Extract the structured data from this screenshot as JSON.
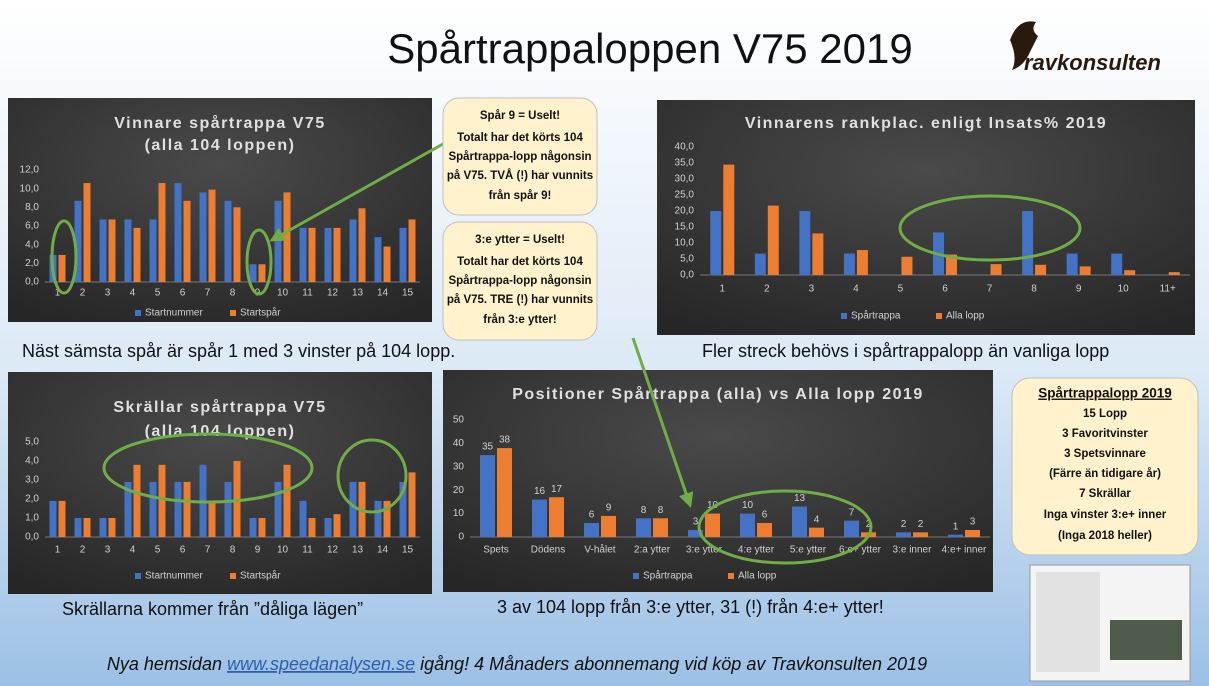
{
  "slide": {
    "title": "Spårtrappaloppen V75 2019",
    "logo": "ravkonsulten",
    "callouts": [
      {
        "lines": [
          "Spår 9 = Uselt!",
          "Totalt har det körts 104",
          "Spårtrappa-lopp någonsin",
          "på V75. TVÅ (!) har vunnits",
          "från spår 9!"
        ]
      },
      {
        "lines": [
          "3:e ytter = Uselt!",
          "Totalt har det körts 104",
          "Spårtrappa-lopp någonsin",
          "på V75. TRE (!) har vunnits",
          "från 3:e ytter!"
        ]
      }
    ],
    "info_box": {
      "heading": "Spårtrappalopp 2019",
      "lines": [
        "15 Lopp",
        "3 Favoritvinster",
        "3 Spetsvinnare",
        "(Färre än tidigare år)",
        "7 Skrällar",
        "Inga vinster 3:e+ inner",
        "(Inga 2018 heller)"
      ]
    },
    "captions": [
      "Näst sämsta spår är spår 1 med 3 vinster på 104 lopp.",
      "Fler streck behövs i spårtrappalopp än vanliga lopp",
      "Skrällarna kommer från ”dåliga lägen”",
      "3 av 104 lopp från 3:e ytter, 31 (!) från 4:e+ ytter!"
    ],
    "footer": [
      "Nya hemsidan",
      "www.speedanalysen.se",
      "igång! 4 Månaders abonnemang vid köp av Travkonsulten 2019"
    ]
  },
  "chart_data": [
    {
      "type": "bar",
      "title": [
        "Vinnare spårtrappa V75",
        "(alla 104 loppen)"
      ],
      "categories": [
        "1",
        "2",
        "3",
        "4",
        "5",
        "6",
        "7",
        "8",
        "9",
        "10",
        "11",
        "12",
        "13",
        "14",
        "15"
      ],
      "series": [
        {
          "name": "Startnummer",
          "color": "#4472c4",
          "values": [
            2.9,
            8.7,
            6.7,
            6.7,
            6.7,
            10.6,
            9.6,
            8.7,
            1.9,
            8.7,
            5.8,
            5.8,
            6.7,
            4.8,
            5.8
          ]
        },
        {
          "name": "Startspår",
          "color": "#ed7d31",
          "values": [
            2.9,
            10.6,
            6.7,
            5.8,
            10.6,
            8.7,
            9.9,
            8.0,
            1.9,
            9.6,
            5.8,
            5.8,
            7.9,
            3.8,
            6.7
          ]
        }
      ],
      "ylim": [
        0,
        12
      ],
      "yticks": [
        {
          "value": 0,
          "label": "0,0"
        },
        {
          "value": 2,
          "label": "2,0"
        },
        {
          "value": 4,
          "label": "4,0"
        },
        {
          "value": 6,
          "label": "6,0"
        },
        {
          "value": 8,
          "label": "8,0"
        },
        {
          "value": 10,
          "label": "10,0"
        },
        {
          "value": 12,
          "label": "12,0"
        }
      ],
      "grid": false,
      "legend": "bottom"
    },
    {
      "type": "bar",
      "title": [
        "Skrällar spårtrappa V75",
        "(alla 104 loppen)"
      ],
      "categories": [
        "1",
        "2",
        "3",
        "4",
        "5",
        "6",
        "7",
        "8",
        "9",
        "10",
        "11",
        "12",
        "13",
        "14",
        "15"
      ],
      "series": [
        {
          "name": "Startnummer",
          "color": "#4472c4",
          "values": [
            1.9,
            1.0,
            1.0,
            2.9,
            2.9,
            2.9,
            3.8,
            2.9,
            1.0,
            2.9,
            1.9,
            1.0,
            2.9,
            1.9,
            2.9
          ]
        },
        {
          "name": "Startspår",
          "color": "#ed7d31",
          "values": [
            1.9,
            1.0,
            1.0,
            3.8,
            3.8,
            2.9,
            1.9,
            4.0,
            1.0,
            3.8,
            1.0,
            1.2,
            2.9,
            1.9,
            3.4
          ]
        }
      ],
      "ylim": [
        0,
        5
      ],
      "yticks": [
        {
          "value": 0,
          "label": "0,0"
        },
        {
          "value": 1,
          "label": "1,0"
        },
        {
          "value": 2,
          "label": "2,0"
        },
        {
          "value": 3,
          "label": "3,0"
        },
        {
          "value": 4,
          "label": "4,0"
        },
        {
          "value": 5,
          "label": "5,0"
        }
      ],
      "grid": false,
      "legend": "bottom"
    },
    {
      "type": "bar",
      "title": "Vinnarens rankplac. enligt Insats% 2019",
      "categories": [
        "1",
        "2",
        "3",
        "4",
        "5",
        "6",
        "7",
        "8",
        "9",
        "10",
        "11+"
      ],
      "series": [
        {
          "name": "Spårtrappa",
          "color": "#4472c4",
          "values": [
            20.0,
            6.7,
            20.0,
            6.7,
            0,
            13.3,
            0,
            20.0,
            6.7,
            6.7,
            0
          ]
        },
        {
          "name": "Alla lopp",
          "color": "#ed7d31",
          "values": [
            34.5,
            21.7,
            13.0,
            7.8,
            5.7,
            6.4,
            3.4,
            3.2,
            2.7,
            1.5,
            0.9
          ]
        }
      ],
      "ylim": [
        0,
        40
      ],
      "yticks": [
        {
          "value": 0,
          "label": "0,0"
        },
        {
          "value": 5,
          "label": "5,0"
        },
        {
          "value": 10,
          "label": "10,0"
        },
        {
          "value": 15,
          "label": "15,0"
        },
        {
          "value": 20,
          "label": "20,0"
        },
        {
          "value": 25,
          "label": "25,0"
        },
        {
          "value": 30,
          "label": "30,0"
        },
        {
          "value": 35,
          "label": "35,0"
        },
        {
          "value": 40,
          "label": "40,0"
        }
      ],
      "grid": false,
      "legend": "bottom"
    },
    {
      "type": "bar",
      "title": "Positioner Spårtrappa (alla) vs Alla lopp 2019",
      "categories": [
        "Spets",
        "Dödens",
        "V-hålet",
        "2:a ytter",
        "3:e ytter",
        "4:e ytter",
        "5:e ytter",
        "6:e+ ytter",
        "3:e inner",
        "4:e+ inner"
      ],
      "series": [
        {
          "name": "Spårtrappa",
          "color": "#4472c4",
          "values": [
            35,
            16,
            6,
            8,
            3,
            10,
            13,
            7,
            2,
            1
          ]
        },
        {
          "name": "Alla lopp",
          "color": "#ed7d31",
          "values": [
            38,
            17,
            9,
            8,
            10,
            6,
            4,
            2,
            2,
            3
          ]
        }
      ],
      "ylim": [
        0,
        50
      ],
      "yticks": [
        0,
        10,
        20,
        30,
        40,
        50
      ],
      "grid": false,
      "legend": "bottom",
      "data_labels": true
    }
  ]
}
